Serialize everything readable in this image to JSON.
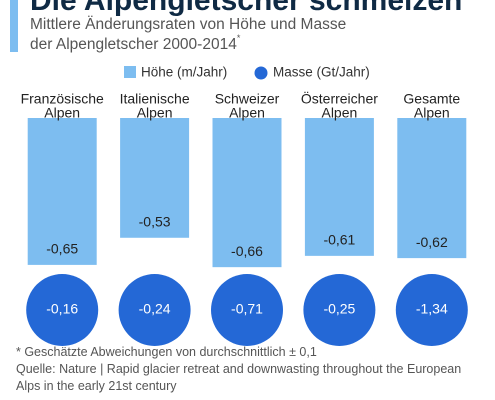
{
  "chart_data": {
    "type": "bar",
    "title": "Die Alpengletscher schmelzen",
    "subtitle_lines": [
      "Mittlere Änderungsraten von Höhe und Masse",
      "der Alpengletscher 2000-2014"
    ],
    "subtitle_mark": "*",
    "categories": [
      [
        "Französische",
        "Alpen"
      ],
      [
        "Italienische",
        "Alpen"
      ],
      [
        "Schweizer",
        "Alpen"
      ],
      [
        "Österreicher",
        "Alpen"
      ],
      [
        "Gesamte",
        "Alpen"
      ]
    ],
    "series": [
      {
        "name": "Höhe (m/Jahr)",
        "color": "#7dbdf0",
        "values": [
          -0.65,
          -0.53,
          -0.66,
          -0.61,
          -0.62
        ],
        "value_labels": [
          "-0,65",
          "-0,53",
          "-0,66",
          "-0,61",
          "-0,62"
        ]
      },
      {
        "name": "Masse (Gt/Jahr)",
        "color": "#2468d6",
        "values": [
          -0.16,
          -0.24,
          -0.71,
          -0.25,
          -1.34
        ],
        "value_labels": [
          "-0,16",
          "-0,24",
          "-0,71",
          "-0,25",
          "-1,34"
        ]
      }
    ],
    "footnote": "* Geschätzte Abweichungen von durchschnittlich ± 0,1",
    "source": "Quelle: Nature | Rapid glacier retreat and downwasting throughout the European Alps in the early 21st century"
  }
}
